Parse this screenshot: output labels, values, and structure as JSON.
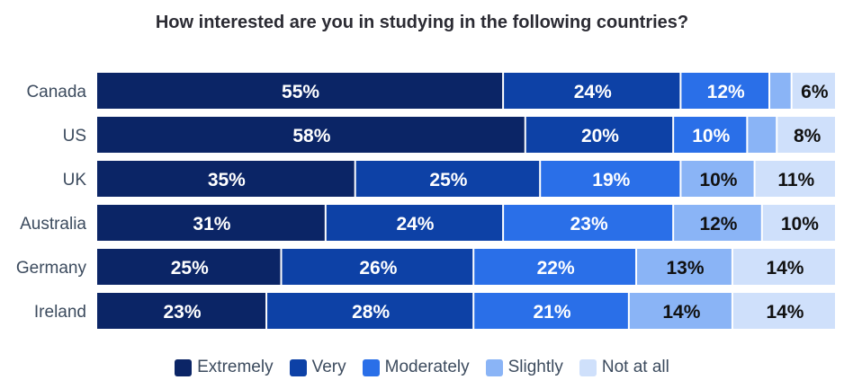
{
  "chart_data": {
    "type": "bar",
    "orientation": "horizontal",
    "stacked": true,
    "title": "How interested are you in studying in the following countries?",
    "categories": [
      "Canada",
      "US",
      "UK",
      "Australia",
      "Germany",
      "Ireland"
    ],
    "series": [
      {
        "name": "Extremely",
        "color": "#0b2566",
        "values": [
          55,
          58,
          35,
          31,
          25,
          23
        ],
        "labels": [
          "55%",
          "58%",
          "35%",
          "31%",
          "25%",
          "23%"
        ]
      },
      {
        "name": "Very",
        "color": "#0d41a6",
        "values": [
          24,
          20,
          25,
          24,
          26,
          28
        ],
        "labels": [
          "24%",
          "20%",
          "25%",
          "24%",
          "26%",
          "28%"
        ]
      },
      {
        "name": "Moderately",
        "color": "#2a6fe8",
        "values": [
          12,
          10,
          19,
          23,
          22,
          21
        ],
        "labels": [
          "12%",
          "10%",
          "19%",
          "23%",
          "22%",
          "21%"
        ]
      },
      {
        "name": "Slightly",
        "color": "#8ab4f6",
        "values": [
          3,
          4,
          10,
          12,
          13,
          14
        ],
        "labels": [
          "",
          "",
          "10%",
          "12%",
          "13%",
          "14%"
        ]
      },
      {
        "name": "Not at all",
        "color": "#cfe0fb",
        "values": [
          6,
          8,
          11,
          10,
          14,
          14
        ],
        "labels": [
          "6%",
          "8%",
          "11%",
          "10%",
          "14%",
          "14%"
        ]
      }
    ],
    "xlim": [
      0,
      100
    ],
    "grid": false,
    "legend_position": "bottom"
  }
}
